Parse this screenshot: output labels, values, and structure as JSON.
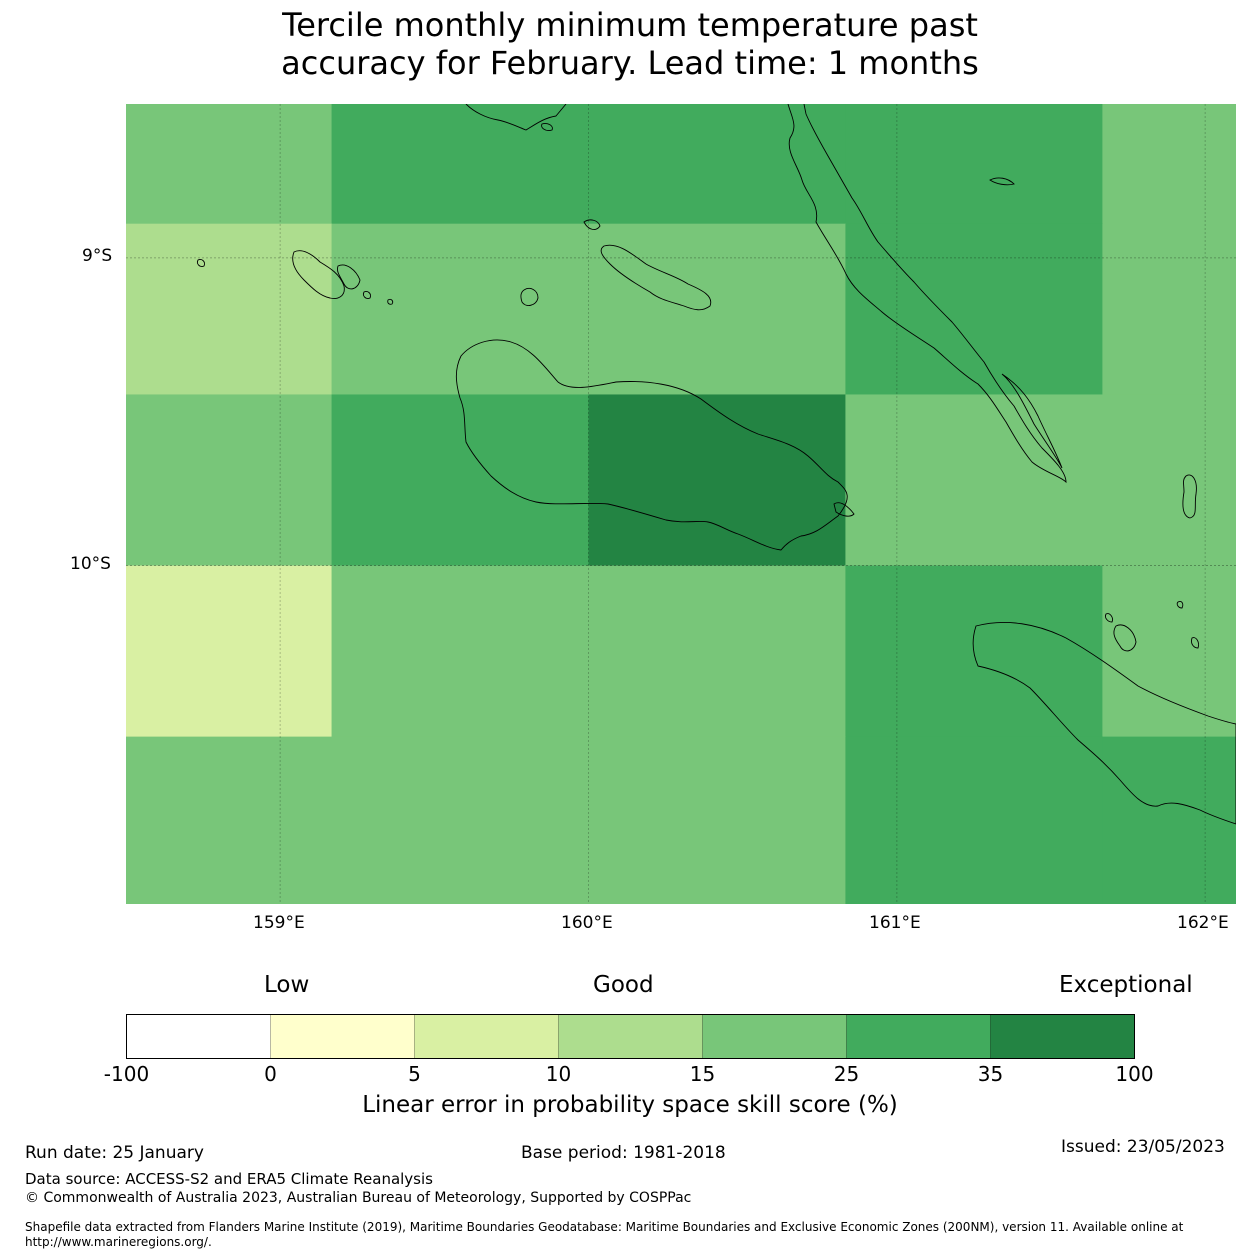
{
  "title_line1": "Tercile monthly minimum temperature past",
  "title_line2": "accuracy for February. Lead time: 1 months",
  "map": {
    "lon_range": [
      158.5,
      162.1
    ],
    "lat_range": [
      -11.1,
      -8.5
    ],
    "lat_ticks": [
      {
        "value": -9,
        "label": "9°S"
      },
      {
        "value": -10,
        "label": "10°S"
      }
    ],
    "lon_ticks": [
      {
        "value": 159,
        "label": "159°E"
      },
      {
        "value": 160,
        "label": "160°E"
      },
      {
        "value": 161,
        "label": "161°E"
      },
      {
        "value": 162,
        "label": "162°E"
      }
    ],
    "cell_lon_edges": [
      158.5,
      159.1667,
      160.0,
      160.8333,
      161.6667,
      162.1
    ],
    "cell_lat_edges": [
      -8.5,
      -8.889,
      -9.444,
      -10.0,
      -10.556,
      -11.1
    ],
    "skill_classes": [
      [
        4,
        5,
        5,
        5,
        4
      ],
      [
        3,
        4,
        4,
        5,
        4
      ],
      [
        4,
        5,
        6,
        4,
        4
      ],
      [
        2,
        4,
        4,
        5,
        4
      ],
      [
        4,
        4,
        4,
        5,
        5
      ]
    ],
    "land_color": "none",
    "coastline_color": "#000000"
  },
  "colorbar": {
    "low_label": "Low",
    "good_label": "Good",
    "exceptional_label": "Exceptional",
    "boundaries": [
      "-100",
      "0",
      "5",
      "10",
      "15",
      "25",
      "35",
      "100"
    ],
    "colors": [
      "#ffffff",
      "#ffffcc",
      "#d9f0a3",
      "#addd8e",
      "#78c679",
      "#41ab5d",
      "#238443"
    ],
    "label": "Linear error in probability space skill score (%)"
  },
  "footer": {
    "run_date": "Run date: 25 January",
    "base_period": "Base period: 1981-2018",
    "issued": "Issued: 23/05/2023",
    "data_source": "Data source: ACCESS-S2 and ERA5 Climate Reanalysis",
    "copyright": "© Commonwealth of Australia 2023, Australian Bureau of Meteorology, Supported by COSPPac",
    "shapefile_line1": "Shapefile data extracted from Flanders Marine Institute (2019), Maritime Boundaries Geodatabase: Maritime Boundaries and Exclusive Economic Zones (200NM), version 11. Available online at",
    "shapefile_line2": "http://www.marineregions.org/."
  }
}
